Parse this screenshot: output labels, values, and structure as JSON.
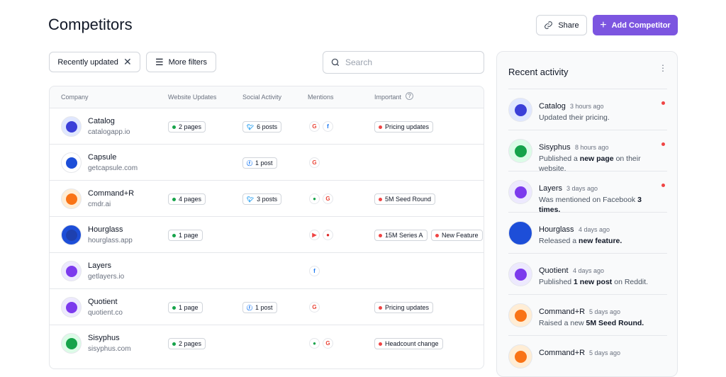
{
  "header": {
    "title": "Competitors",
    "share": "Share",
    "add": "Add Competitor"
  },
  "filters": {
    "chip": "Recently updated",
    "more": "More filters",
    "search": "Search"
  },
  "table": {
    "columns": [
      "Company",
      "Website Updates",
      "Social Activity",
      "Mentions",
      "Important"
    ],
    "rows": [
      {
        "name": "Catalog",
        "domain": "catalogapp.io",
        "website": "2 pages",
        "social": "6 posts",
        "important": [
          "Pricing updates"
        ]
      },
      {
        "name": "Capsule",
        "domain": "getcapsule.com",
        "social": "1 post",
        "important": []
      },
      {
        "name": "Command+R",
        "domain": "cmdr.ai",
        "website": "4 pages",
        "social": "3 posts",
        "important": [
          "5M Seed Round"
        ]
      },
      {
        "name": "Hourglass",
        "domain": "hourglass.app",
        "website": "1 page",
        "important": [
          "15M Series A",
          "New Feature"
        ]
      },
      {
        "name": "Layers",
        "domain": "getlayers.io",
        "important": []
      },
      {
        "name": "Quotient",
        "domain": "quotient.co",
        "website": "1 page",
        "social": "1 post",
        "important": [
          "Pricing updates"
        ]
      },
      {
        "name": "Sisyphus",
        "domain": "sisyphus.com",
        "website": "2 pages",
        "important": [
          "Headcount change"
        ]
      }
    ]
  },
  "activity": {
    "title": "Recent activity",
    "items": [
      {
        "name": "Catalog",
        "time": "3 hours ago",
        "parts": [
          "Updated their pricing."
        ]
      },
      {
        "name": "Sisyphus",
        "time": "8 hours ago",
        "parts": [
          "Published a ",
          "new page",
          " on their website."
        ]
      },
      {
        "name": "Layers",
        "time": "3 days ago",
        "parts": [
          "Was mentioned on Facebook ",
          "3 times."
        ]
      },
      {
        "name": "Hourglass",
        "time": "4 days ago",
        "parts": [
          "Released a ",
          "new feature."
        ]
      },
      {
        "name": "Quotient",
        "time": "4 days ago",
        "parts": [
          "Published ",
          "1 new post",
          " on Reddit."
        ]
      },
      {
        "name": "Command+R",
        "time": "5 days ago",
        "parts": [
          "Raised a new ",
          "5M Seed Round."
        ]
      },
      {
        "name": "Command+R",
        "time": "5 days ago",
        "parts": []
      }
    ]
  }
}
